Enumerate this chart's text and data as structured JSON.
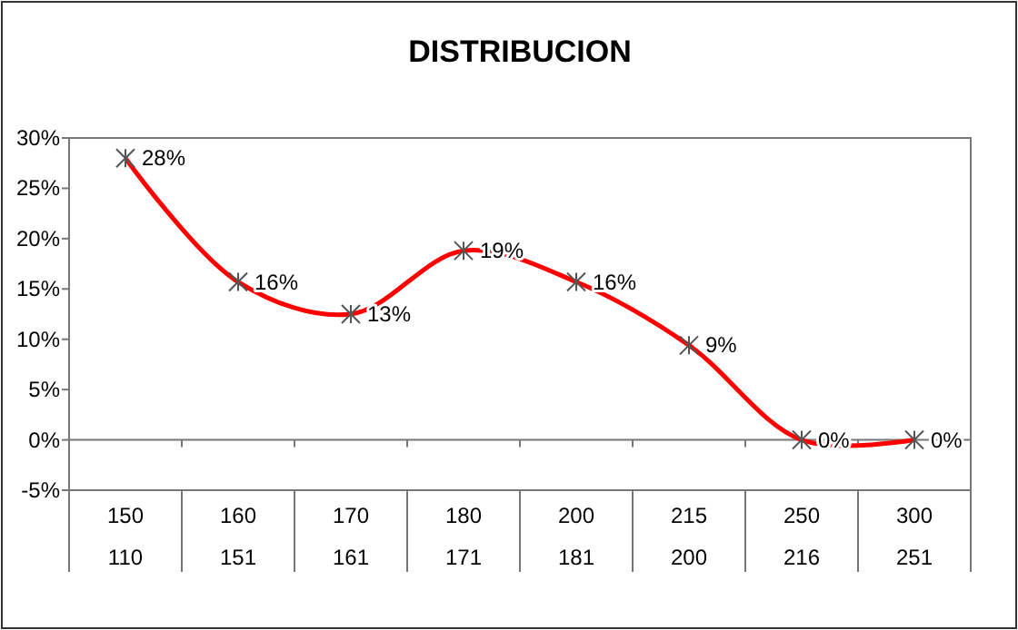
{
  "chart_data": {
    "type": "line",
    "title": "DISTRIBUCION",
    "categories": [
      "150\n110",
      "160\n151",
      "170\n161",
      "180\n171",
      "200\n181",
      "215\n200",
      "250\n216",
      "300\n251"
    ],
    "series": [
      {
        "color": "#ff0000",
        "values": [
          28,
          15.7,
          12.5,
          18.8,
          15.7,
          9.4,
          0,
          0
        ],
        "value_labels": [
          "28%",
          "16%",
          "13%",
          "19%",
          "16%",
          "9%",
          "0%",
          "0%"
        ]
      }
    ],
    "ylim": [
      -5,
      30
    ],
    "yticks": [
      {
        "value": -5,
        "label": "-5%"
      },
      {
        "value": 0,
        "label": "0%"
      },
      {
        "value": 5,
        "label": "5%"
      },
      {
        "value": 10,
        "label": "10%"
      },
      {
        "value": 15,
        "label": "15%"
      },
      {
        "value": 20,
        "label": "20%"
      },
      {
        "value": 25,
        "label": "25%"
      },
      {
        "value": 30,
        "label": "30%"
      }
    ],
    "marker": "cross",
    "line_style": "solid"
  }
}
